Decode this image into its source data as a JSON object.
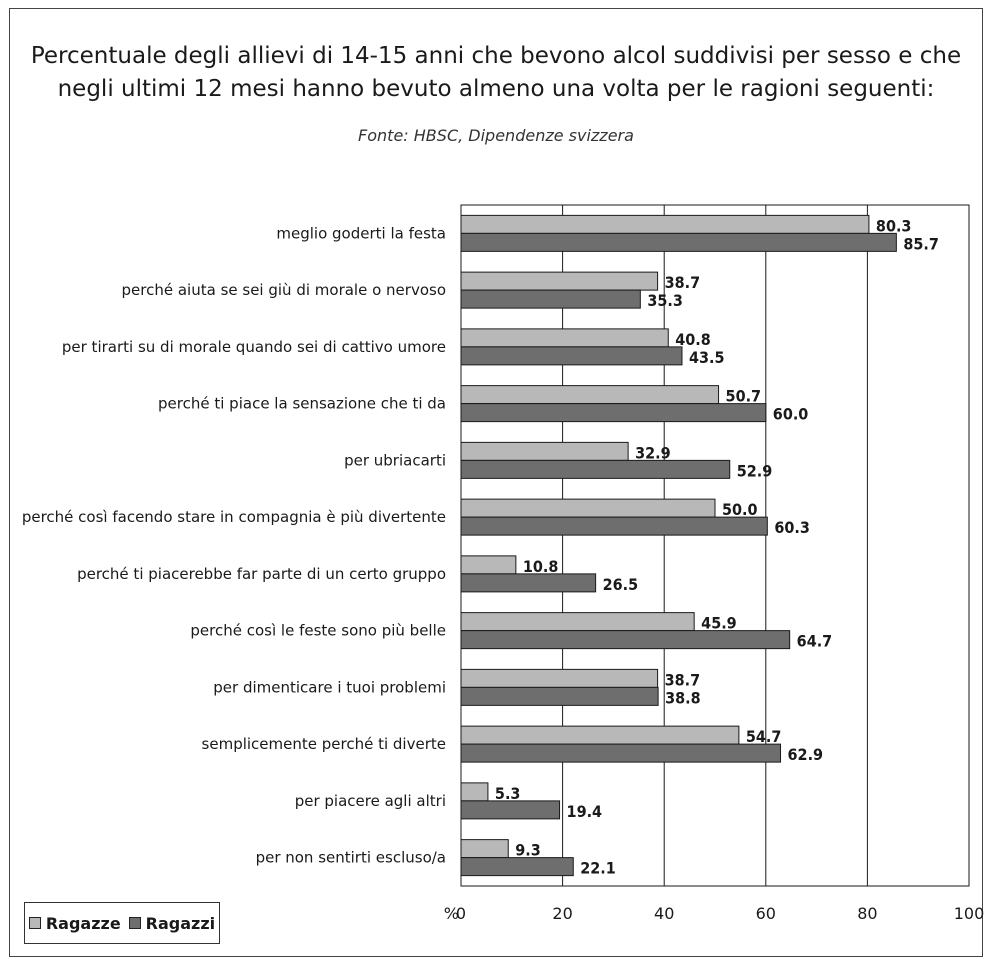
{
  "title_line1": "Percentuale degli allievi di 14-15 anni che bevono alcol suddivisi per sesso e che",
  "title_line2": "negli ultimi 12 mesi hanno bevuto almeno una volta per le ragioni seguenti:",
  "subtitle": "Fonte: HBSC, Dipendenze svizzera",
  "colors": {
    "ragazze": "#b8b8b8",
    "ragazzi": "#6e6e6e",
    "grid": "#1a1a1a"
  },
  "chart_data": {
    "type": "bar",
    "orientation": "horizontal",
    "title": "Percentuale degli allievi di 14-15 anni che bevono alcol suddivisi per sesso e che negli ultimi 12 mesi hanno bevuto almeno una volta per le ragioni seguenti:",
    "subtitle": "Fonte: HBSC, Dipendenze svizzera",
    "categories": [
      "meglio goderti la festa",
      "perché aiuta se sei giù di morale o nervoso",
      "per tirarti su di morale quando sei di cattivo umore",
      "perché ti piace la sensazione che ti da",
      "per ubriacarti",
      "perché così facendo stare in compagnia è più divertente",
      "perché ti piacerebbe far parte di un certo gruppo",
      "perché così le feste sono più belle",
      "per dimenticare i tuoi problemi",
      "semplicemente perché ti diverte",
      "per piacere agli altri",
      "per non sentirti escluso/a"
    ],
    "series": [
      {
        "name": "Ragazze",
        "values": [
          80.3,
          38.7,
          40.8,
          50.7,
          32.9,
          50.0,
          10.8,
          45.9,
          38.7,
          54.7,
          5.3,
          9.3
        ],
        "labels": [
          "80.3",
          "38.7",
          "40.8",
          "50.7",
          "32.9",
          "50.0",
          "10.8",
          "45.9",
          "38.7",
          "54.7",
          "5.3",
          "9.3"
        ]
      },
      {
        "name": "Ragazzi",
        "values": [
          85.7,
          35.3,
          43.5,
          60.0,
          52.9,
          60.3,
          26.5,
          64.7,
          38.8,
          62.9,
          19.4,
          22.1
        ],
        "labels": [
          "85.7",
          "35.3",
          "43.5",
          "60.0",
          "52.9",
          "60.3",
          "26.5",
          "64.7",
          "38.8",
          "62.9",
          "19.4",
          "22.1"
        ]
      }
    ],
    "x_axis": {
      "min": 0,
      "max": 100,
      "ticks": [
        0,
        20,
        40,
        60,
        80,
        100
      ],
      "tick_labels": [
        "0",
        "20",
        "40",
        "60",
        "80",
        "100"
      ],
      "unit_label": "%"
    },
    "grid": true,
    "legend_position": "bottom-left"
  }
}
